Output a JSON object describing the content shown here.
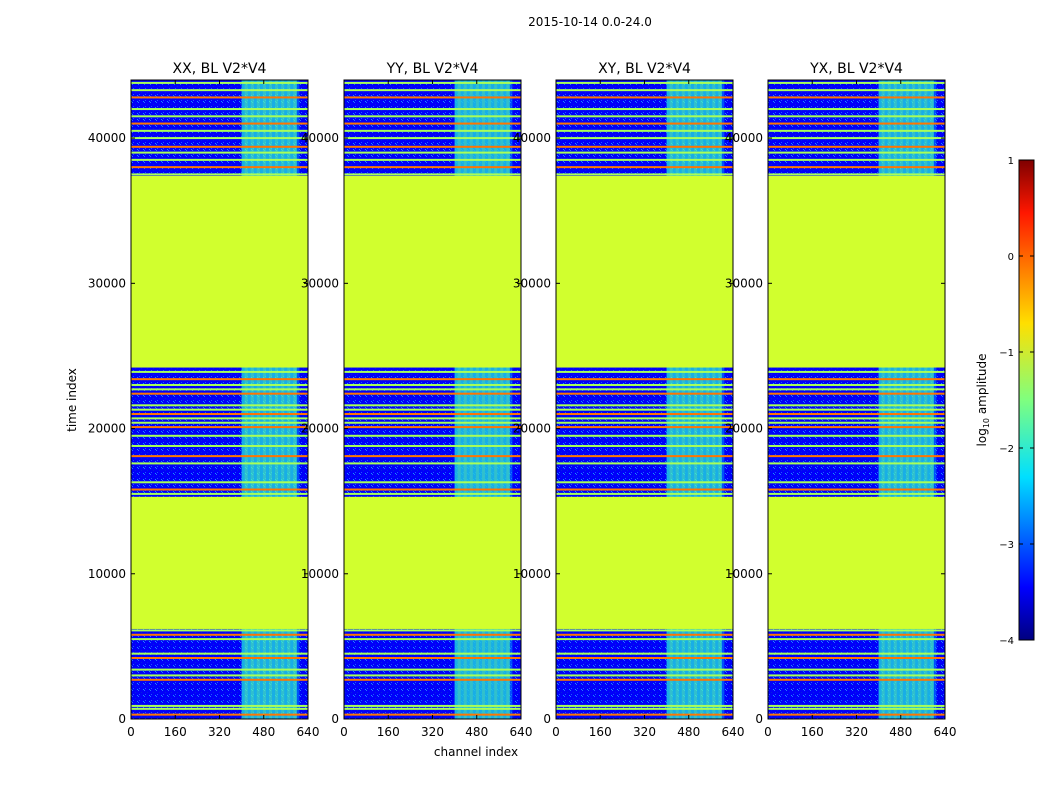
{
  "chart_data": {
    "type": "heatmap",
    "suptitle": "2015-10-14 0.0-24.0",
    "xlabel": "channel index",
    "ylabel": "time index",
    "xlim": [
      0,
      640
    ],
    "ylim": [
      0,
      44000
    ],
    "xticks": [
      0,
      160,
      320,
      480,
      640
    ],
    "yticks": [
      0,
      10000,
      20000,
      30000,
      40000
    ],
    "colorbar": {
      "label_prefix": "log",
      "label_sub": "10",
      "label_suffix": " amplitude",
      "ticks": [
        1,
        0,
        -1,
        -2,
        -3,
        -4
      ],
      "tick_labels": [
        "1",
        "0",
        "−1",
        "−2",
        "−3",
        "−4"
      ],
      "range": [
        -4,
        1
      ],
      "colormap": "jet"
    },
    "panels": [
      {
        "title": "XX, BL V2*V4"
      },
      {
        "title": "YY, BL V2*V4"
      },
      {
        "title": "XY, BL V2*V4"
      },
      {
        "title": "YX, BL V2*V4"
      }
    ],
    "flagged_time_ranges": [
      [
        6200,
        15300
      ],
      [
        24200,
        37400
      ]
    ],
    "flagged_log_amplitude": -1.1,
    "background_log_amplitude": -3.4,
    "active_channel_band": [
      400,
      600
    ],
    "active_band_log_amplitude": -1.8,
    "bright_rows": [
      300,
      700,
      900,
      2700,
      3000,
      3400,
      4200,
      4500,
      5500,
      5800,
      6100,
      15500,
      15800,
      16300,
      17600,
      18100,
      18800,
      19500,
      20100,
      20400,
      20700,
      21000,
      21300,
      21600,
      22400,
      22700,
      23000,
      23400,
      23900,
      37500,
      38000,
      38500,
      39000,
      39400,
      40000,
      40500,
      41000,
      41500,
      42000,
      42800,
      43300,
      43800
    ]
  }
}
